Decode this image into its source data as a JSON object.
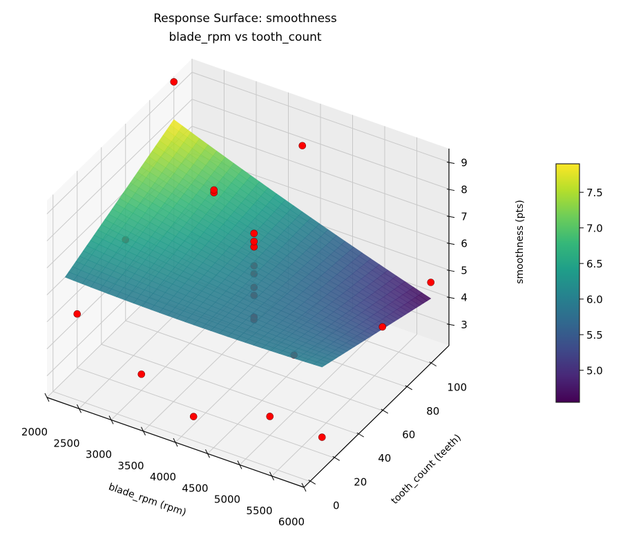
{
  "chart_data": {
    "type": "surface3d",
    "title": "Response Surface: smoothness",
    "subtitle": "blade_rpm vs tooth_count",
    "xlabel": "blade_rpm (rpm)",
    "ylabel": "tooth_count (teeth)",
    "zlabel": "smoothness (pts)",
    "xlim": [
      2000,
      6000
    ],
    "ylim": [
      -5,
      115
    ],
    "zlim": [
      2.2,
      9.5
    ],
    "xticks": [
      2000,
      2500,
      3000,
      3500,
      4000,
      4500,
      5000,
      5500,
      6000
    ],
    "yticks": [
      0,
      20,
      40,
      60,
      80,
      100
    ],
    "zticks": [
      3,
      4,
      5,
      6,
      7,
      8,
      9
    ],
    "colorbar": {
      "label": "smoothness (pts)",
      "range": [
        4.55,
        7.9
      ],
      "ticks": [
        "5.0",
        "5.5",
        "6.0",
        "6.5",
        "7.0",
        "7.5"
      ],
      "colormap": "viridis"
    },
    "surface": {
      "x_range": [
        2000,
        6000
      ],
      "y_range": [
        10,
        100
      ],
      "corners": {
        "x2000_ymin": 6.0,
        "x6000_ymin": 6.0,
        "x2000_ymax": 7.9,
        "x6000_ymax": 4.6
      }
    },
    "points": [
      {
        "x": 2000,
        "y": 100,
        "z": 9.3
      },
      {
        "x": 4000,
        "y": 100,
        "z": 8.6
      },
      {
        "x": 6000,
        "y": 60,
        "z": 5.3
      },
      {
        "x": 2000,
        "y": 20,
        "z": 4.2
      },
      {
        "x": 3000,
        "y": 20,
        "z": 2.8
      },
      {
        "x": 4000,
        "y": 10,
        "z": 2.5
      },
      {
        "x": 5000,
        "y": 20,
        "z": 2.9
      },
      {
        "x": 6000,
        "y": 10,
        "z": 3.4
      },
      {
        "x": 4000,
        "y": 60,
        "z": 3.9
      },
      {
        "x": 4000,
        "y": 60,
        "z": 4.0
      },
      {
        "x": 3000,
        "y": 80,
        "z": 6.9
      },
      {
        "x": 3000,
        "y": 80,
        "z": 7.0
      },
      {
        "x": 4000,
        "y": 60,
        "z": 6.6
      },
      {
        "x": 4000,
        "y": 60,
        "z": 6.8
      },
      {
        "x": 4000,
        "y": 60,
        "z": 7.1
      },
      {
        "x": 4000,
        "y": 60,
        "z": 5.6
      },
      {
        "x": 4000,
        "y": 60,
        "z": 5.9
      },
      {
        "x": 4000,
        "y": 60,
        "z": 4.8
      },
      {
        "x": 4000,
        "y": 60,
        "z": 5.1
      },
      {
        "x": 2000,
        "y": 60,
        "z": 5.2
      },
      {
        "x": 6000,
        "y": 100,
        "z": 5.2
      },
      {
        "x": 5000,
        "y": 40,
        "z": 4.3
      }
    ],
    "point_color": "#ff0000",
    "grid": true
  }
}
